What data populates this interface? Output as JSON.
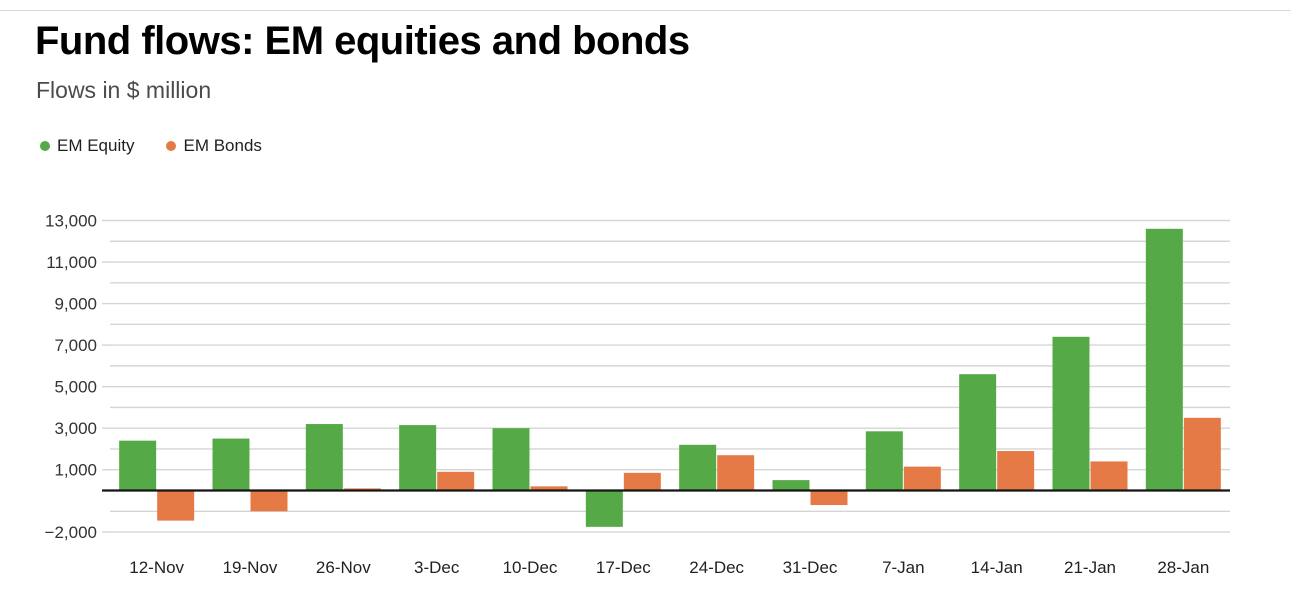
{
  "header": {
    "title": "Fund flows: EM equities and bonds",
    "subtitle": "Flows in $ million"
  },
  "chart_data": {
    "type": "bar",
    "title": "Fund flows: EM equities and bonds",
    "subtitle": "Flows in $ million",
    "unit": "$ million",
    "legend_position": "top-left",
    "grid": true,
    "categories": [
      "12-Nov",
      "19-Nov",
      "26-Nov",
      "3-Dec",
      "10-Dec",
      "17-Dec",
      "24-Dec",
      "31-Dec",
      "7-Jan",
      "14-Jan",
      "21-Jan",
      "28-Jan"
    ],
    "series": [
      {
        "name": "EM Equity",
        "color": "#55aa47",
        "values": [
          2400,
          2500,
          3200,
          3150,
          3000,
          -1750,
          2200,
          500,
          2850,
          5600,
          7400,
          12600
        ]
      },
      {
        "name": "EM Bonds",
        "color": "#e67a47",
        "values": [
          -1450,
          -1000,
          100,
          900,
          200,
          850,
          1700,
          -700,
          1150,
          1900,
          1400,
          3500
        ]
      }
    ],
    "y_axis": {
      "min": -2000,
      "max": 13000,
      "grid_step": 1000,
      "tick_values": [
        13000,
        11000,
        9000,
        7000,
        5000,
        3000,
        1000,
        -2000
      ],
      "tick_labels": [
        "13,000",
        "11,000",
        "9,000",
        "7,000",
        "5,000",
        "3,000",
        "1,000",
        "−2,000"
      ]
    }
  },
  "colors": {
    "grid": "#d5d5d5",
    "zero_line": "#151515",
    "axis_text": "#333333",
    "x_label_text": "#222222",
    "top_rule": "#d9d9d9"
  }
}
